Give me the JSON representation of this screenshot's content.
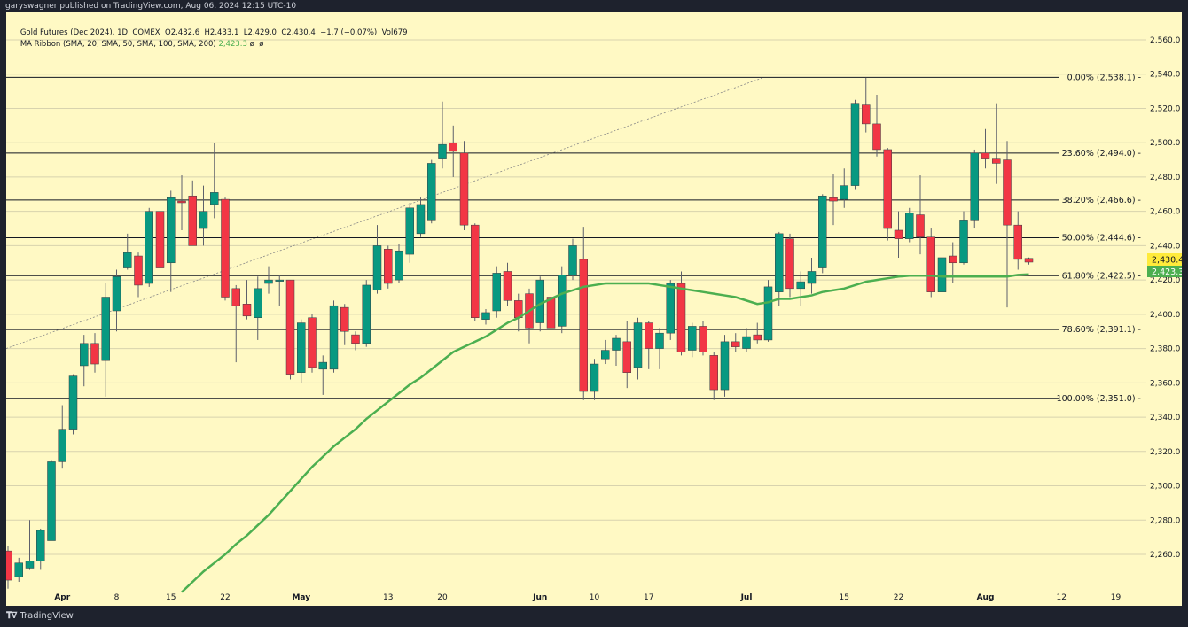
{
  "header": {
    "published": "garyswagner published on TradingView.com, Aug 06, 2024 12:15 UTC-10"
  },
  "legend": {
    "symbol": "Gold Futures (Dec 2024), 1D, COMEX",
    "ohlc": "O2,432.6  H2,433.1  L2,429.0  C2,430.4  −1.7 (−0.07%)  Vol679",
    "ma_label": "MA Ribbon (SMA, 20, SMA, 50, SMA, 100, SMA, 200)",
    "ma_value": "2,423.3",
    "ma_na": "ø  ø"
  },
  "footer": {
    "brand": "TradingView",
    "logo_icon": "tradingview-logo-icon"
  },
  "colors": {
    "background": "#fff9c4",
    "up": "#089981",
    "down": "#f23645",
    "ma": "#4caf50",
    "last_price": "#ffeb3b"
  },
  "chart_data": {
    "type": "candlestick",
    "ylim": [
      2240,
      2570
    ],
    "y_ticks": [
      "2,260.0",
      "2,280.0",
      "2,300.0",
      "2,320.0",
      "2,340.0",
      "2,360.0",
      "2,380.0",
      "2,400.0",
      "2,420.0",
      "2,440.0",
      "2,460.0",
      "2,480.0",
      "2,500.0",
      "2,520.0",
      "2,540.0",
      "2,560.0"
    ],
    "y_tick_values": [
      2260,
      2280,
      2300,
      2320,
      2340,
      2360,
      2380,
      2400,
      2420,
      2440,
      2460,
      2480,
      2500,
      2520,
      2540,
      2560
    ],
    "x_ticks": [
      {
        "label": "Apr",
        "bold": true
      },
      {
        "label": "8"
      },
      {
        "label": "15"
      },
      {
        "label": "22"
      },
      {
        "label": "May",
        "bold": true
      },
      {
        "label": "13"
      },
      {
        "label": "20"
      },
      {
        "label": "Jun",
        "bold": true
      },
      {
        "label": "10"
      },
      {
        "label": "17"
      },
      {
        "label": "Jul",
        "bold": true
      },
      {
        "label": "15"
      },
      {
        "label": "22"
      },
      {
        "label": "Aug",
        "bold": true
      },
      {
        "label": "12"
      },
      {
        "label": "19"
      }
    ],
    "ohlc": [
      [
        2262,
        2265,
        2240,
        2245
      ],
      [
        2247,
        2258,
        2244,
        2255
      ],
      [
        2252,
        2280,
        2251,
        2256
      ],
      [
        2256,
        2275,
        2251,
        2274
      ],
      [
        2268,
        2315,
        2268,
        2314
      ],
      [
        2314,
        2347,
        2310,
        2333
      ],
      [
        2333,
        2365,
        2330,
        2364
      ],
      [
        2370,
        2388,
        2358,
        2383
      ],
      [
        2383,
        2389,
        2366,
        2371
      ],
      [
        2373,
        2418,
        2352,
        2410
      ],
      [
        2402,
        2426,
        2390,
        2422
      ],
      [
        2427,
        2447,
        2426,
        2436
      ],
      [
        2434,
        2436,
        2410,
        2417
      ],
      [
        2418,
        2462,
        2416,
        2460
      ],
      [
        2460,
        2517,
        2416,
        2427
      ],
      [
        2430,
        2472,
        2413,
        2468
      ],
      [
        2466,
        2481,
        2449,
        2465
      ],
      [
        2469,
        2478,
        2443,
        2440
      ],
      [
        2450,
        2475,
        2440,
        2460
      ],
      [
        2464,
        2500,
        2456,
        2471
      ],
      [
        2467,
        2468,
        2408,
        2410
      ],
      [
        2415,
        2417,
        2372,
        2405
      ],
      [
        2406,
        2420,
        2397,
        2399
      ],
      [
        2398,
        2422,
        2385,
        2415
      ],
      [
        2418,
        2428,
        2412,
        2420
      ],
      [
        2420,
        2423,
        2405,
        2420
      ],
      [
        2420,
        2420,
        2362,
        2365
      ],
      [
        2366,
        2397,
        2360,
        2395
      ],
      [
        2398,
        2400,
        2366,
        2369
      ],
      [
        2368,
        2376,
        2353,
        2372
      ],
      [
        2368,
        2408,
        2366,
        2405
      ],
      [
        2404,
        2406,
        2382,
        2390
      ],
      [
        2388,
        2390,
        2379,
        2383
      ],
      [
        2383,
        2420,
        2381,
        2417
      ],
      [
        2414,
        2452,
        2412,
        2440
      ],
      [
        2438,
        2440,
        2415,
        2418
      ],
      [
        2420,
        2441,
        2418,
        2437
      ],
      [
        2435,
        2465,
        2430,
        2462
      ],
      [
        2447,
        2468,
        2445,
        2464
      ],
      [
        2455,
        2490,
        2453,
        2488
      ],
      [
        2491,
        2524,
        2485,
        2499
      ],
      [
        2500,
        2510,
        2480,
        2495
      ],
      [
        2494,
        2501,
        2449,
        2452
      ],
      [
        2452,
        2453,
        2396,
        2398
      ],
      [
        2397,
        2403,
        2394,
        2401
      ],
      [
        2402,
        2428,
        2398,
        2424
      ],
      [
        2425,
        2430,
        2405,
        2408
      ],
      [
        2408,
        2412,
        2390,
        2398
      ],
      [
        2412,
        2415,
        2383,
        2392
      ],
      [
        2395,
        2422,
        2390,
        2420
      ],
      [
        2410,
        2420,
        2381,
        2392
      ],
      [
        2393,
        2428,
        2389,
        2423
      ],
      [
        2423,
        2444,
        2420,
        2440
      ],
      [
        2432,
        2451,
        2350,
        2355
      ],
      [
        2355,
        2374,
        2350,
        2371
      ],
      [
        2374,
        2385,
        2371,
        2379
      ],
      [
        2379,
        2388,
        2370,
        2386
      ],
      [
        2384,
        2396,
        2357,
        2366
      ],
      [
        2369,
        2398,
        2362,
        2395
      ],
      [
        2395,
        2396,
        2368,
        2380
      ],
      [
        2380,
        2392,
        2368,
        2389
      ],
      [
        2389,
        2420,
        2385,
        2418
      ],
      [
        2418,
        2425,
        2376,
        2378
      ],
      [
        2379,
        2395,
        2375,
        2393
      ],
      [
        2393,
        2396,
        2376,
        2378
      ],
      [
        2376,
        2378,
        2350,
        2356
      ],
      [
        2356,
        2388,
        2352,
        2384
      ],
      [
        2384,
        2389,
        2378,
        2381
      ],
      [
        2380,
        2392,
        2378,
        2387
      ],
      [
        2388,
        2395,
        2383,
        2385
      ],
      [
        2385,
        2420,
        2384,
        2416
      ],
      [
        2413,
        2448,
        2405,
        2447
      ],
      [
        2444,
        2447,
        2410,
        2415
      ],
      [
        2415,
        2425,
        2405,
        2419
      ],
      [
        2418,
        2433,
        2412,
        2425
      ],
      [
        2427,
        2470,
        2424,
        2469
      ],
      [
        2468,
        2482,
        2452,
        2466
      ],
      [
        2467,
        2485,
        2462,
        2475
      ],
      [
        2475,
        2525,
        2473,
        2523
      ],
      [
        2522,
        2538,
        2506,
        2511
      ],
      [
        2511,
        2528,
        2492,
        2496
      ],
      [
        2496,
        2497,
        2443,
        2450
      ],
      [
        2449,
        2460,
        2433,
        2444
      ],
      [
        2444,
        2462,
        2442,
        2459
      ],
      [
        2458,
        2481,
        2435,
        2445
      ],
      [
        2445,
        2450,
        2410,
        2413
      ],
      [
        2413,
        2435,
        2400,
        2433
      ],
      [
        2434,
        2442,
        2418,
        2430
      ],
      [
        2430,
        2460,
        2429,
        2455
      ],
      [
        2455,
        2496,
        2450,
        2494
      ],
      [
        2494,
        2508,
        2485,
        2491
      ],
      [
        2491,
        2523,
        2476,
        2488
      ],
      [
        2490,
        2501,
        2404,
        2452
      ],
      [
        2452,
        2460,
        2426,
        2432
      ],
      [
        2432.6,
        2433.1,
        2429.0,
        2430.4
      ]
    ],
    "ma50_start": 16,
    "ma50": [
      2238,
      2244,
      2250,
      2255,
      2260,
      2266,
      2271,
      2277,
      2283,
      2290,
      2297,
      2304,
      2311,
      2317,
      2323,
      2328,
      2333,
      2339,
      2344,
      2349,
      2354,
      2359,
      2363,
      2368,
      2373,
      2378,
      2381,
      2384,
      2387,
      2391,
      2395,
      2398,
      2402,
      2406,
      2409,
      2412,
      2414,
      2416,
      2417,
      2418,
      2418,
      2418,
      2418,
      2418,
      2417,
      2416,
      2415,
      2414,
      2413,
      2412,
      2411,
      2410,
      2408,
      2406,
      2407,
      2409,
      2409,
      2410,
      2411,
      2413,
      2414,
      2415,
      2417,
      2419,
      2420,
      2421,
      2422,
      2422.5,
      2422.5,
      2422.5,
      2422,
      2422,
      2422,
      2422,
      2422,
      2422,
      2422,
      2423,
      2423.3
    ],
    "last_price": {
      "label": "2,430.4",
      "value": 2430.4
    },
    "ma_price": {
      "label": "2,423.3",
      "value": 2423.3
    },
    "fib_levels": [
      {
        "label": "0.00% (2,538.1)",
        "value": 2538.1
      },
      {
        "label": "23.60% (2,494.0)",
        "value": 2494.0
      },
      {
        "label": "38.20% (2,466.6)",
        "value": 2466.6
      },
      {
        "label": "50.00% (2,444.6)",
        "value": 2444.6
      },
      {
        "label": "61.80% (2,422.5)",
        "value": 2422.5
      },
      {
        "label": "78.60% (2,391.1)",
        "value": 2391.1
      },
      {
        "label": "100.00% (2,351.0)",
        "value": 2351.0
      }
    ],
    "trend_line": {
      "from_price": 2380,
      "to_price": 2538.1
    }
  }
}
